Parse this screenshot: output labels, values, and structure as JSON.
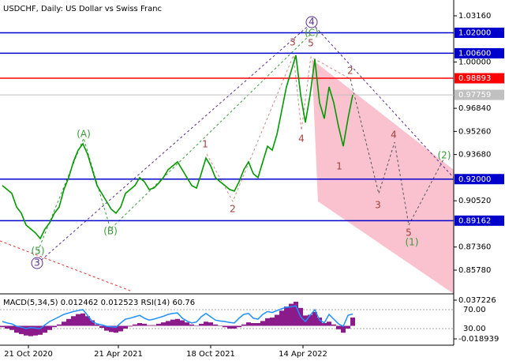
{
  "chart_data": [
    {
      "type": "line",
      "title": "USDCHF, Daily:  US Dollar vs Swiss Franc",
      "x": [
        0,
        1,
        2,
        3,
        4,
        5,
        6,
        7,
        8,
        9,
        10,
        11,
        12,
        13,
        14,
        15,
        16,
        17,
        18,
        19,
        20,
        21,
        22,
        23,
        24,
        25,
        26,
        27,
        28,
        29,
        30,
        31,
        32,
        33,
        34,
        35,
        36,
        37,
        38,
        39,
        40,
        41,
        42,
        43,
        44,
        45,
        46,
        47,
        48,
        49,
        50,
        51,
        52,
        53,
        54,
        55,
        56,
        57,
        58,
        59,
        60,
        61,
        62,
        63,
        64,
        65,
        66,
        67,
        68,
        69,
        70,
        71,
        72,
        73,
        74
      ],
      "values": [
        0.9156,
        0.9129,
        0.9102,
        0.901,
        0.8967,
        0.8886,
        0.8859,
        0.8832,
        0.8794,
        0.8859,
        0.8902,
        0.8967,
        0.901,
        0.9129,
        0.921,
        0.9318,
        0.9398,
        0.9442,
        0.9371,
        0.9264,
        0.9156,
        0.9102,
        0.9048,
        0.8994,
        0.8967,
        0.901,
        0.9102,
        0.9129,
        0.9156,
        0.921,
        0.9182,
        0.9129,
        0.9139,
        0.9172,
        0.921,
        0.9264,
        0.9291,
        0.9318,
        0.9264,
        0.921,
        0.9156,
        0.9139,
        0.9237,
        0.9344,
        0.9291,
        0.921,
        0.9182,
        0.9156,
        0.9129,
        0.9118,
        0.9182,
        0.9264,
        0.9318,
        0.9237,
        0.921,
        0.9318,
        0.9425,
        0.9398,
        0.9506,
        0.9668,
        0.983,
        0.9938,
        1.0046,
        0.9776,
        0.9587,
        0.9776,
        1.0019,
        0.9722,
        0.9614,
        0.983,
        0.9722,
        0.956,
        0.9425,
        0.9614,
        0.97759
      ],
      "color": "#009900",
      "xlim": [
        -0.5,
        95.33
      ],
      "xticks": [
        {
          "value": 5.5,
          "label": "21 Oct 2020"
        },
        {
          "value": 24.5,
          "label": "21 Apr 2021"
        },
        {
          "value": 44,
          "label": "18 Oct 2021"
        },
        {
          "value": 63.5,
          "label": "14 Apr 2022"
        }
      ],
      "ylim": [
        0.8416,
        1.0424
      ],
      "yticks": [
        {
          "value": 1.0316,
          "label": "1.03160"
        },
        {
          "value": 1.0,
          "label": "1.00000"
        },
        {
          "value": 0.9684,
          "label": "0.96840"
        },
        {
          "value": 0.9526,
          "label": "0.95260"
        },
        {
          "value": 0.9368,
          "label": "0.93680"
        },
        {
          "value": 0.9052,
          "label": "0.90520"
        },
        {
          "value": 0.8736,
          "label": "0.87360"
        },
        {
          "value": 0.8578,
          "label": "0.85780"
        }
      ],
      "levels": [
        {
          "value": 1.02,
          "label": "1.02000",
          "color": "#0000cc"
        },
        {
          "value": 1.006,
          "label": "1.00600",
          "color": "#0000cc"
        },
        {
          "value": 0.98893,
          "label": "0.98893",
          "color": "#ff0000"
        },
        {
          "value": 0.97759,
          "label": "0.97759",
          "color": "#c0c0c0"
        },
        {
          "value": 0.92,
          "label": "0.92000",
          "color": "#0000cc"
        },
        {
          "value": 0.89162,
          "label": "0.89162",
          "color": "#0000cc"
        }
      ],
      "annotations": [
        {
          "text": "(A)",
          "color": "#3a9a3a"
        },
        {
          "text": "(B)",
          "color": "#3a9a3a"
        },
        {
          "text": "(5)",
          "color": "#3a9a3a"
        },
        {
          "text": "3",
          "color": "#5a2d91"
        },
        {
          "text": "1",
          "color": "#a0403a"
        },
        {
          "text": "2",
          "color": "#a0403a"
        },
        {
          "text": "3",
          "color": "#a0403a"
        },
        {
          "text": "4",
          "color": "#a0403a"
        },
        {
          "text": "5",
          "color": "#a0403a"
        },
        {
          "text": "4",
          "color": "#5a2d91"
        },
        {
          "text": "(C)",
          "color": "#3a9a3a"
        },
        {
          "text": "2",
          "color": "#a0403a"
        },
        {
          "text": "1",
          "color": "#a0403a"
        },
        {
          "text": "3",
          "color": "#a0403a"
        },
        {
          "text": "4",
          "color": "#a0403a"
        },
        {
          "text": "5",
          "color": "#a0403a"
        },
        {
          "text": "(1)",
          "color": "#3a9a3a"
        },
        {
          "text": "(2)",
          "color": "#3a9a3a"
        }
      ]
    },
    {
      "type": "macd",
      "title": "MACD(5,34,5) 0.012462 0.012523 RSI(14) 60.76",
      "histogram": {
        "color": "#8b1a8b",
        "values": [
          -0.002,
          -0.004,
          -0.006,
          -0.01,
          -0.012,
          -0.014,
          -0.015,
          -0.014,
          -0.013,
          -0.01,
          -0.006,
          -0.002,
          0.002,
          0.006,
          0.01,
          0.014,
          0.017,
          0.018,
          0.014,
          0.008,
          0.002,
          -0.003,
          -0.007,
          -0.009,
          -0.01,
          -0.008,
          -0.004,
          -0.001,
          0.002,
          0.004,
          0.003,
          0.001,
          0.001,
          0.003,
          0.005,
          0.007,
          0.009,
          0.01,
          0.008,
          0.005,
          0.002,
          0.0,
          0.003,
          0.006,
          0.005,
          0.002,
          0.0,
          -0.002,
          -0.004,
          -0.004,
          -0.002,
          0.002,
          0.005,
          0.004,
          0.004,
          0.007,
          0.011,
          0.012,
          0.016,
          0.022,
          0.028,
          0.032,
          0.035,
          0.026,
          0.015,
          0.016,
          0.02,
          0.012,
          0.004,
          0.006,
          0.002,
          -0.005,
          -0.01,
          -0.004,
          0.012
        ]
      },
      "rsi": {
        "color": "#1e90ff",
        "axis": "y2",
        "values": [
          45,
          42,
          40,
          35,
          33,
          30,
          32,
          31,
          30,
          38,
          45,
          50,
          55,
          60,
          63,
          66,
          68,
          70,
          58,
          45,
          40,
          38,
          35,
          34,
          33,
          42,
          50,
          52,
          55,
          58,
          52,
          48,
          50,
          53,
          56,
          60,
          62,
          63,
          52,
          46,
          42,
          44,
          55,
          62,
          55,
          48,
          46,
          45,
          43,
          42,
          52,
          60,
          62,
          52,
          50,
          60,
          66,
          64,
          68,
          72,
          75,
          76,
          78,
          55,
          45,
          58,
          70,
          48,
          42,
          60,
          50,
          40,
          35,
          58,
          60.76
        ]
      },
      "ylim": [
        -0.02811,
        0.0464
      ],
      "yticks": [
        {
          "value": 0.037226,
          "label": "0.037226"
        },
        {
          "value": -0.018939,
          "label": "-0.018939"
        }
      ],
      "y2lim": [
        -5,
        103.3
      ],
      "y2ticks": [
        {
          "value": 70,
          "label": "70.00"
        },
        {
          "value": 30,
          "label": "30.00"
        }
      ]
    }
  ]
}
